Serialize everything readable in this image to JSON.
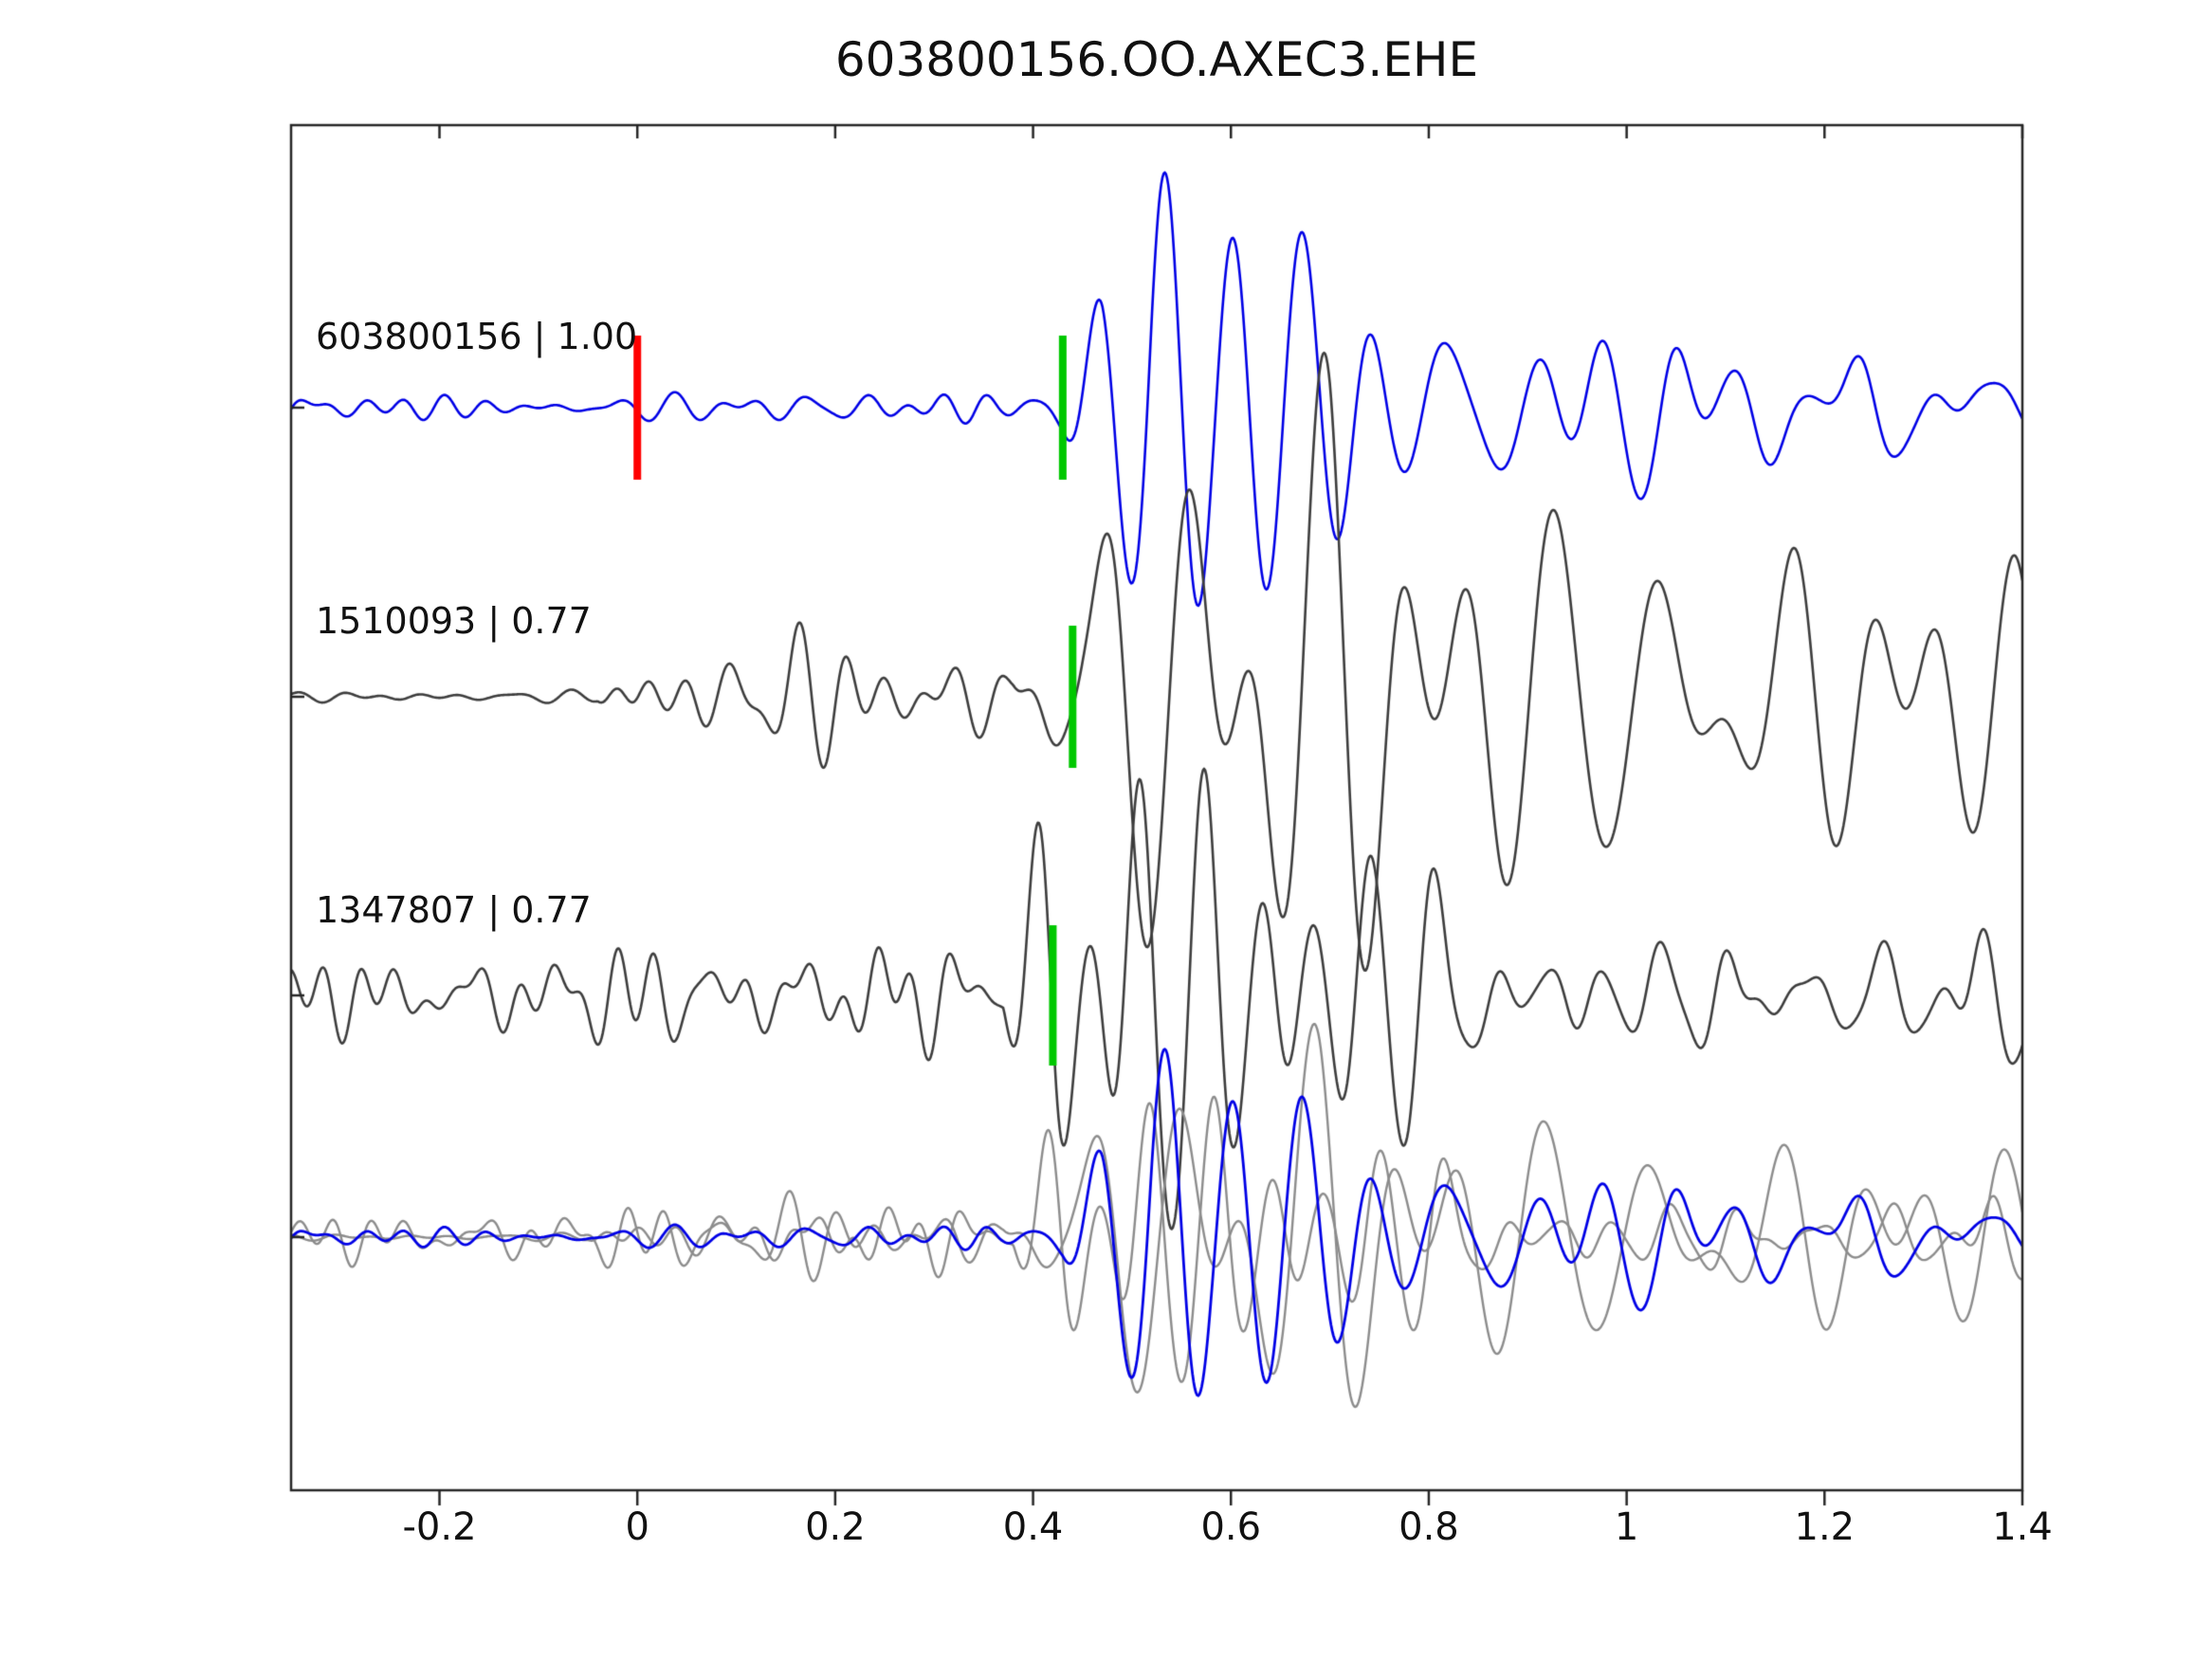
{
  "title": "603800156.OO.AXEC3.EHE",
  "chart_data": {
    "type": "line",
    "title": "603800156.OO.AXEC3.EHE",
    "xlabel": "",
    "ylabel": "",
    "xlim": [
      -0.35,
      1.4
    ],
    "grid": false,
    "legend": "none",
    "x_ticks": [
      -0.2,
      0,
      0.2,
      0.4,
      0.6,
      0.8,
      1,
      1.2,
      1.4
    ],
    "x_tick_labels": [
      "-0.2",
      "0",
      "0.2",
      "0.4",
      "0.6",
      "0.8",
      "1",
      "1.2",
      "1.4"
    ],
    "axis_color": "#262626",
    "traces": [
      {
        "label": "603800156 | 1.00",
        "id": "603800156",
        "correlation": "1.00",
        "color": "#0000e6",
        "width": 2.6,
        "noise": {
          "seed": 101,
          "freq": 24,
          "env": [
            [
              -0.35,
              8
            ],
            [
              0.34,
              8
            ],
            [
              0.42,
              5
            ],
            [
              0.55,
              3
            ],
            [
              1.4,
              3
            ]
          ]
        },
        "signal": {
          "seed": 102,
          "freq": 11,
          "env": [
            [
              0.37,
              0
            ],
            [
              0.43,
              40
            ],
            [
              0.47,
              120
            ],
            [
              0.52,
              160
            ],
            [
              0.58,
              105
            ],
            [
              0.66,
              90
            ],
            [
              0.78,
              80
            ],
            [
              0.9,
              60
            ],
            [
              1.02,
              55
            ],
            [
              1.15,
              50
            ],
            [
              1.28,
              40
            ],
            [
              1.4,
              28
            ]
          ]
        },
        "markers": [
          {
            "x": 0.0,
            "color": "#ff0000",
            "half": 76
          },
          {
            "x": 0.43,
            "color": "#00c800",
            "half": 76
          }
        ]
      },
      {
        "label": "1510093 | 0.77",
        "id": "1510093",
        "correlation": "0.77",
        "color": "#3d3d3d",
        "width": 2.6,
        "noise": {
          "seed": 201,
          "freq": 19,
          "env": [
            [
              -0.35,
              3
            ],
            [
              -0.04,
              3
            ],
            [
              0.0,
              30
            ],
            [
              0.08,
              26
            ],
            [
              0.16,
              34
            ],
            [
              0.26,
              28
            ],
            [
              0.36,
              32
            ],
            [
              0.44,
              14
            ],
            [
              0.55,
              0
            ],
            [
              1.4,
              0
            ]
          ]
        },
        "signal": {
          "seed": 202,
          "freq": 13,
          "env": [
            [
              0.38,
              0
            ],
            [
              0.45,
              90
            ],
            [
              0.52,
              120
            ],
            [
              0.6,
              150
            ],
            [
              0.7,
              155
            ],
            [
              0.8,
              115
            ],
            [
              0.92,
              105
            ],
            [
              1.05,
              95
            ],
            [
              1.18,
              85
            ],
            [
              1.3,
              75
            ],
            [
              1.4,
              55
            ]
          ]
        },
        "markers": [
          {
            "x": 0.44,
            "color": "#00c800",
            "half": 75
          }
        ]
      },
      {
        "label": "1347807 | 0.77",
        "id": "1347807",
        "correlation": "0.77",
        "color": "#3d3d3d",
        "width": 2.6,
        "noise": {
          "seed": 301,
          "freq": 21,
          "env": [
            [
              -0.35,
              26
            ],
            [
              0.1,
              30
            ],
            [
              0.3,
              32
            ],
            [
              0.4,
              26
            ],
            [
              0.5,
              14
            ],
            [
              0.7,
              12
            ],
            [
              1.4,
              11
            ]
          ]
        },
        "signal": {
          "seed": 302,
          "freq": 13.5,
          "env": [
            [
              0.37,
              0
            ],
            [
              0.42,
              115
            ],
            [
              0.48,
              125
            ],
            [
              0.56,
              95
            ],
            [
              0.66,
              90
            ],
            [
              0.78,
              80
            ],
            [
              0.9,
              65
            ],
            [
              1.02,
              60
            ],
            [
              1.15,
              55
            ],
            [
              1.3,
              45
            ],
            [
              1.4,
              40
            ]
          ]
        },
        "markers": [
          {
            "x": 0.42,
            "color": "#00c800",
            "half": 74
          }
        ]
      }
    ],
    "overlay": {
      "description": "bottom row: all three traces superimposed",
      "items": [
        {
          "ref": 1,
          "scale": 0.62,
          "shift": -0.01,
          "color": "#8c8c8c",
          "width": 2.4
        },
        {
          "ref": 2,
          "scale": 0.62,
          "shift": 0.01,
          "color": "#8c8c8c",
          "width": 2.4
        },
        {
          "ref": 0,
          "scale": 0.8,
          "shift": 0.0,
          "color": "#0000e6",
          "width": 2.8
        }
      ]
    },
    "marker_colors": {
      "pick_red": "#ff0000",
      "pick_green": "#00c800"
    }
  }
}
